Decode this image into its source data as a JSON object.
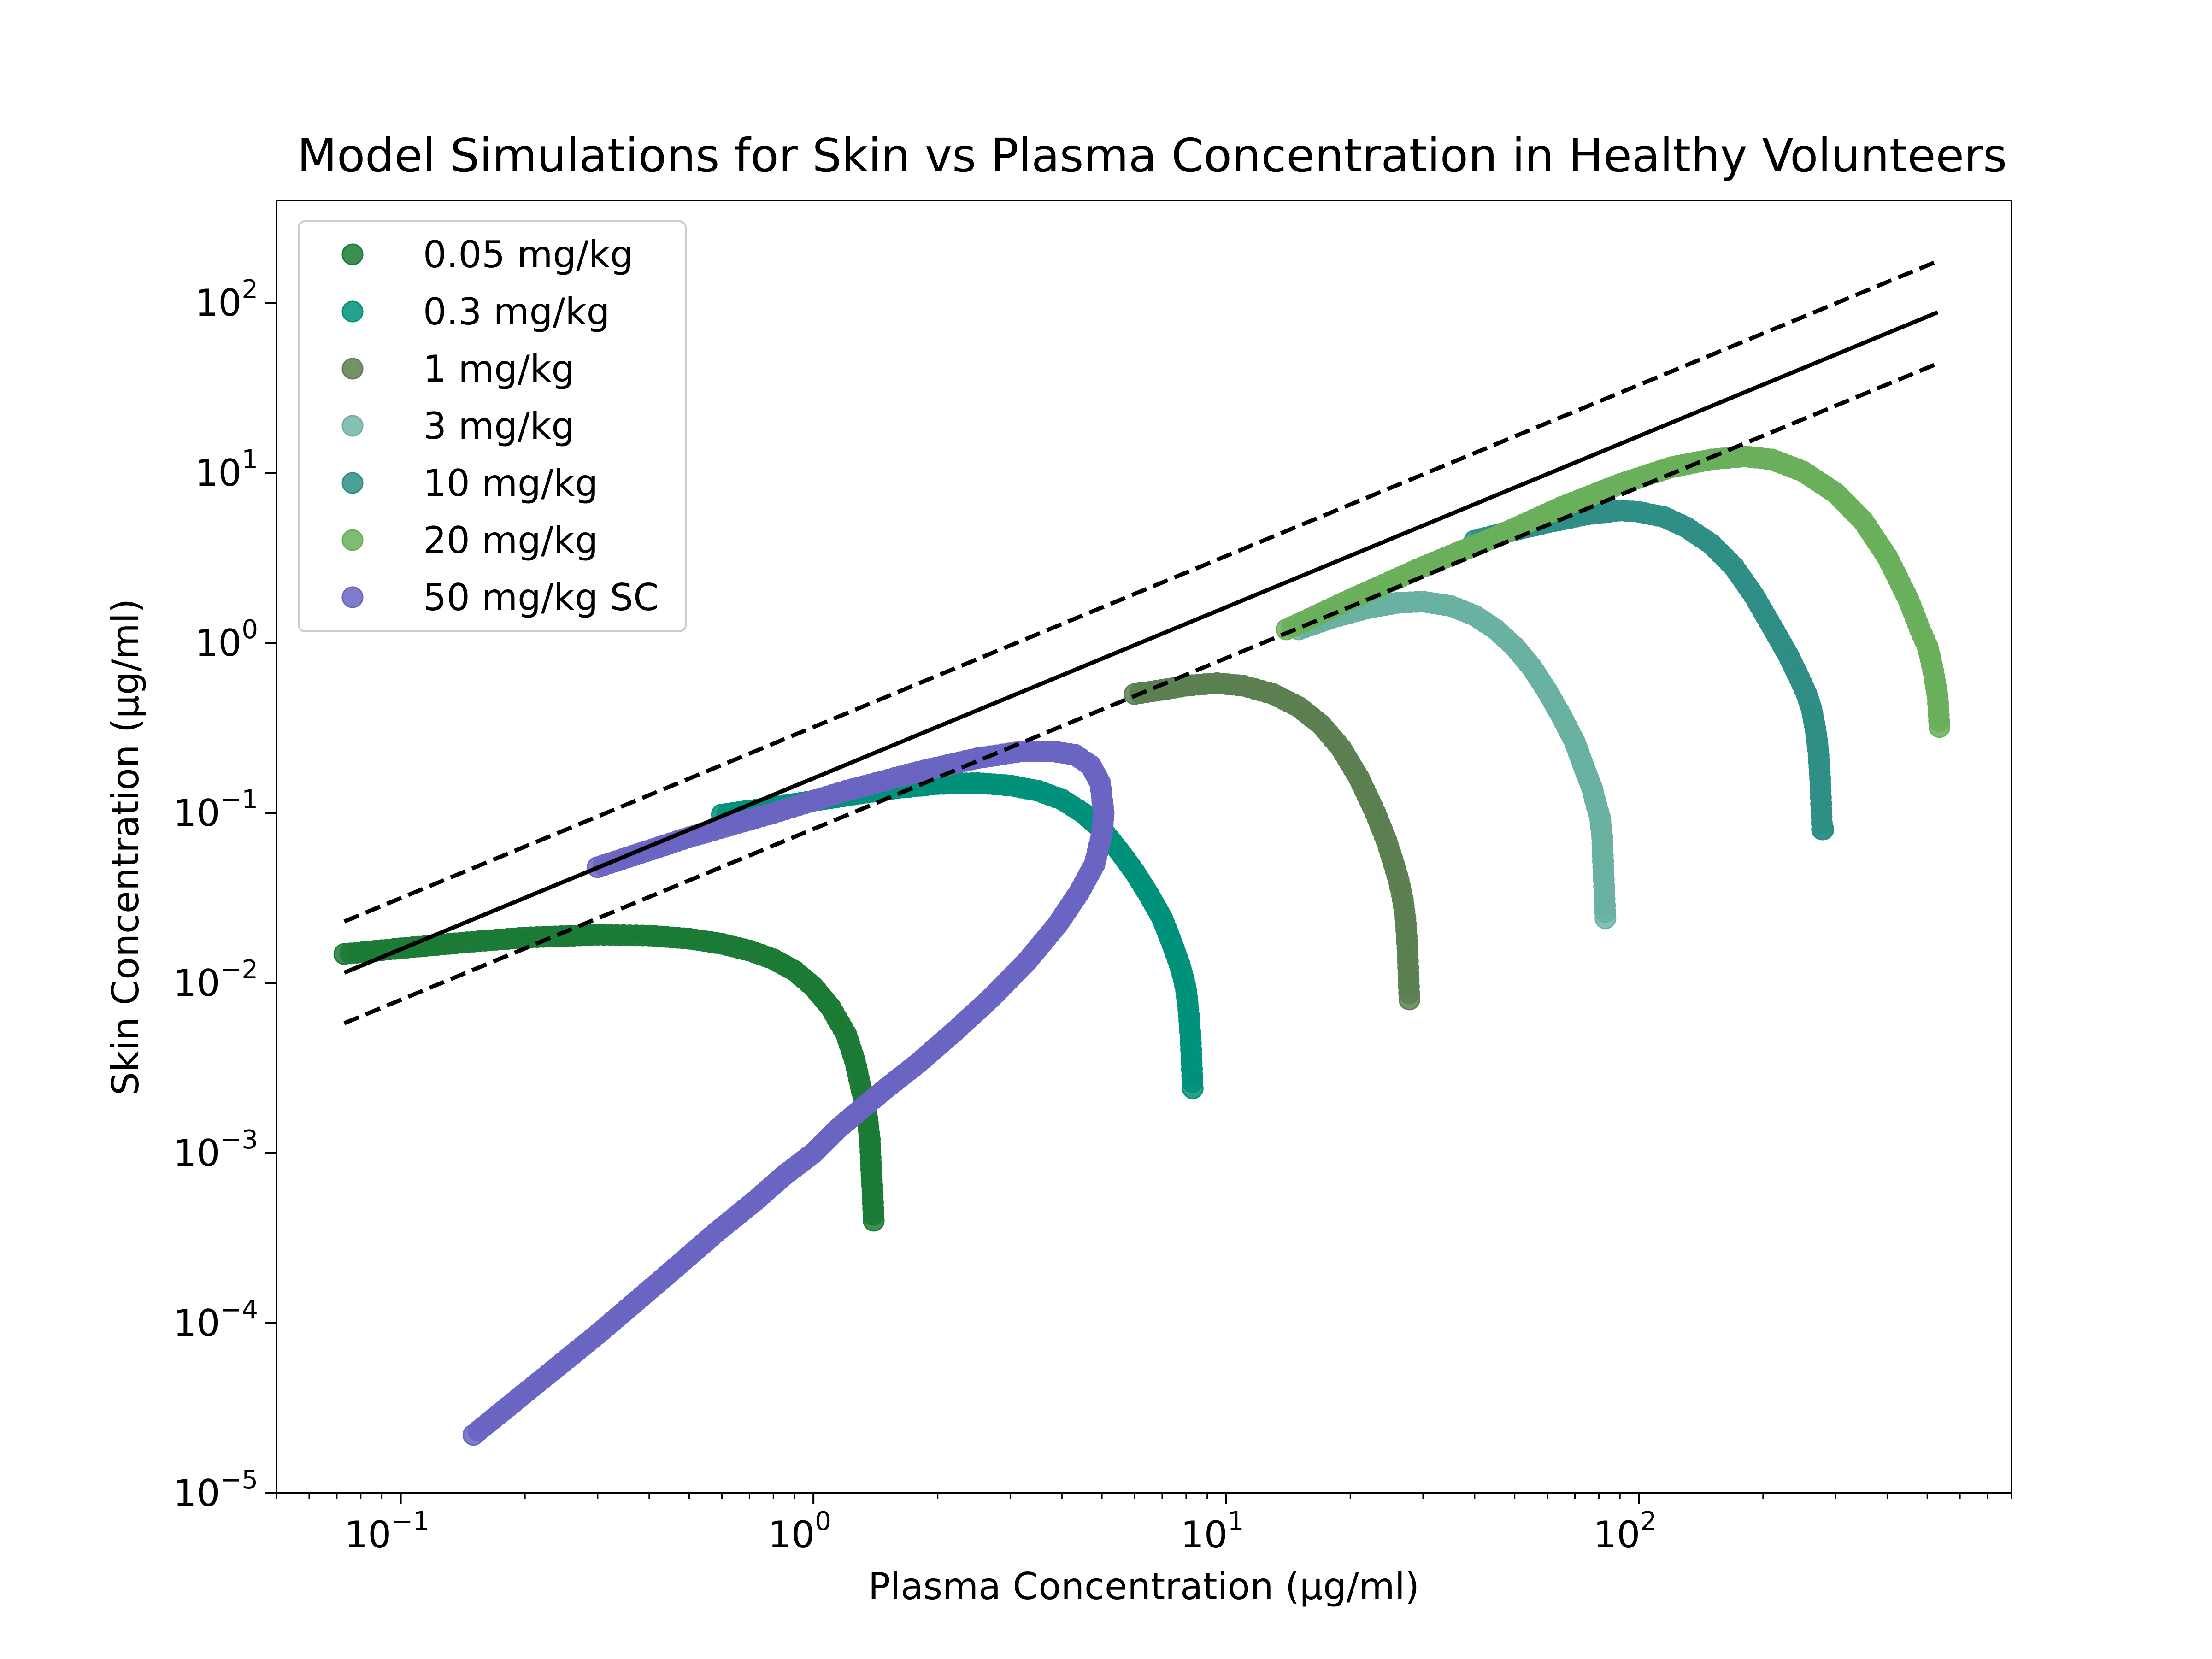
{
  "chart_data": {
    "type": "scatter",
    "title": "Model Simulations for Skin vs Plasma Concentration in Healthy Volunteers",
    "xlabel": "Plasma Concentration (µg/ml)",
    "ylabel": "Skin Concentration (µg/ml)",
    "xscale": "log",
    "yscale": "log",
    "xlim": [
      0.05,
      800
    ],
    "ylim": [
      1e-05,
      400
    ],
    "grid": false,
    "legend_position": "upper-left",
    "x_ticks": [
      {
        "base": "10",
        "exp": "−1",
        "value": 0.1
      },
      {
        "base": "10",
        "exp": "0",
        "value": 1
      },
      {
        "base": "10",
        "exp": "1",
        "value": 10
      },
      {
        "base": "10",
        "exp": "2",
        "value": 100
      }
    ],
    "y_ticks": [
      {
        "base": "10",
        "exp": "−5",
        "value": 1e-05
      },
      {
        "base": "10",
        "exp": "−4",
        "value": 0.0001
      },
      {
        "base": "10",
        "exp": "−3",
        "value": 0.001
      },
      {
        "base": "10",
        "exp": "−2",
        "value": 0.01
      },
      {
        "base": "10",
        "exp": "−1",
        "value": 0.1
      },
      {
        "base": "10",
        "exp": "0",
        "value": 1
      },
      {
        "base": "10",
        "exp": "1",
        "value": 10
      },
      {
        "base": "10",
        "exp": "2",
        "value": 100
      }
    ],
    "reference_lines": [
      {
        "name": "unity-line",
        "style": "solid",
        "x": [
          0.073,
          530
        ],
        "y": [
          0.0115,
          88
        ]
      },
      {
        "name": "upper-bound-line",
        "style": "dashed",
        "x": [
          0.073,
          530
        ],
        "y": [
          0.023,
          176
        ]
      },
      {
        "name": "lower-bound-line",
        "style": "dashed",
        "x": [
          0.073,
          530
        ],
        "y": [
          0.0058,
          44
        ]
      }
    ],
    "series": [
      {
        "name": "0.05 mg/kg",
        "color": "#1b7a35",
        "alpha": 0.85,
        "x": [
          0.073,
          0.1,
          0.15,
          0.2,
          0.3,
          0.4,
          0.5,
          0.6,
          0.7,
          0.8,
          0.9,
          1.0,
          1.1,
          1.2,
          1.26,
          1.3,
          1.33,
          1.35,
          1.37,
          1.38,
          1.39,
          1.4
        ],
        "y": [
          0.0148,
          0.016,
          0.0175,
          0.0185,
          0.0192,
          0.019,
          0.0182,
          0.017,
          0.0155,
          0.0138,
          0.0118,
          0.0095,
          0.0072,
          0.005,
          0.0035,
          0.0025,
          0.002,
          0.0016,
          0.0012,
          0.0008,
          0.0006,
          0.0004
        ]
      },
      {
        "name": "0.3 mg/kg",
        "color": "#00917a",
        "alpha": 0.85,
        "x": [
          0.6,
          0.8,
          1.0,
          1.3,
          1.6,
          2.0,
          2.5,
          3.0,
          3.5,
          4.0,
          4.5,
          5.0,
          5.5,
          6.0,
          6.5,
          7.0,
          7.4,
          7.7,
          7.9,
          8.0,
          8.1,
          8.2,
          8.3
        ],
        "y": [
          0.098,
          0.108,
          0.118,
          0.13,
          0.14,
          0.148,
          0.15,
          0.145,
          0.135,
          0.12,
          0.1,
          0.08,
          0.06,
          0.045,
          0.033,
          0.024,
          0.017,
          0.013,
          0.0105,
          0.009,
          0.007,
          0.0048,
          0.0024
        ]
      },
      {
        "name": "1 mg/kg",
        "color": "#5a7f50",
        "alpha": 0.85,
        "x": [
          6.0,
          7.0,
          8.0,
          9.5,
          11,
          13,
          15,
          17,
          19,
          21,
          23,
          24.5,
          25.5,
          26.2,
          26.8,
          27.2,
          27.5,
          27.8
        ],
        "y": [
          0.5,
          0.53,
          0.56,
          0.58,
          0.56,
          0.5,
          0.42,
          0.33,
          0.24,
          0.16,
          0.1,
          0.068,
          0.05,
          0.04,
          0.031,
          0.024,
          0.016,
          0.008
        ]
      },
      {
        "name": "3 mg/kg",
        "color": "#68b0a0",
        "alpha": 0.8,
        "x": [
          15,
          18,
          22,
          26,
          30,
          35,
          40,
          45,
          50,
          55,
          60,
          65,
          70,
          74,
          77,
          79,
          80.5,
          81.5,
          82,
          83
        ],
        "y": [
          1.2,
          1.4,
          1.6,
          1.72,
          1.75,
          1.65,
          1.45,
          1.2,
          0.95,
          0.72,
          0.52,
          0.37,
          0.26,
          0.18,
          0.14,
          0.11,
          0.094,
          0.072,
          0.048,
          0.024
        ]
      },
      {
        "name": "10 mg/kg",
        "color": "#2e8e86",
        "alpha": 0.85,
        "x": [
          40,
          50,
          60,
          75,
          90,
          100,
          115,
          130,
          150,
          170,
          190,
          210,
          230,
          245,
          255,
          262,
          268,
          272,
          275,
          278,
          280
        ],
        "y": [
          4.0,
          4.6,
          5.1,
          5.7,
          6.0,
          5.9,
          5.5,
          4.8,
          3.8,
          2.8,
          1.9,
          1.25,
          0.85,
          0.62,
          0.5,
          0.41,
          0.31,
          0.235,
          0.16,
          0.08,
          0.08
        ]
      },
      {
        "name": "20 mg/kg",
        "color": "#6aaf5a",
        "alpha": 0.85,
        "x": [
          14,
          20,
          30,
          45,
          65,
          90,
          120,
          150,
          180,
          210,
          250,
          300,
          350,
          400,
          450,
          480,
          500,
          510,
          520,
          530,
          535
        ],
        "y": [
          1.2,
          1.8,
          2.8,
          4.2,
          6.3,
          8.6,
          10.8,
          12.0,
          12.5,
          12.0,
          10.2,
          7.6,
          5.2,
          3.2,
          1.8,
          1.2,
          0.96,
          0.8,
          0.63,
          0.48,
          0.32
        ]
      },
      {
        "name": "50 mg/kg SC",
        "color": "#6a64c2",
        "alpha": 0.85,
        "x": [
          0.3,
          0.5,
          0.8,
          1.2,
          1.8,
          2.5,
          3.2,
          3.8,
          4.3,
          4.7,
          4.95,
          5.05,
          5.0,
          4.8,
          4.4,
          3.9,
          3.3,
          2.7,
          2.2,
          1.8,
          1.5,
          1.3,
          1.15,
          1.0,
          0.85,
          0.72,
          0.58,
          0.44,
          0.3,
          0.15
        ],
        "y": [
          0.048,
          0.072,
          0.1,
          0.135,
          0.175,
          0.21,
          0.23,
          0.23,
          0.22,
          0.19,
          0.15,
          0.1,
          0.075,
          0.05,
          0.034,
          0.022,
          0.0135,
          0.0082,
          0.0052,
          0.0034,
          0.0024,
          0.0018,
          0.0014,
          0.001,
          0.00074,
          0.00052,
          0.00034,
          0.00019,
          8.6e-05,
          2.2e-05
        ]
      }
    ]
  }
}
